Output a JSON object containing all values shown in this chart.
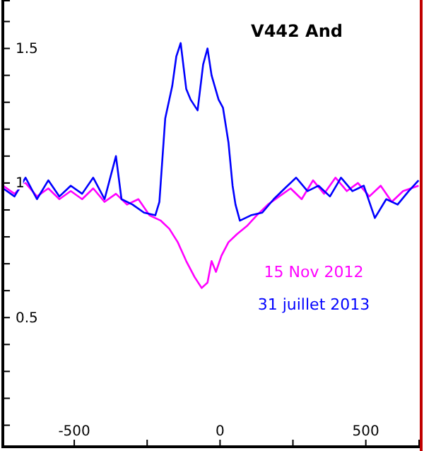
{
  "chart_data": {
    "type": "line",
    "title": "V442 And",
    "xlim": [
      -745,
      685
    ],
    "xticks": [
      -500,
      {
        "value": -250,
        "label": null
      },
      0,
      {
        "value": 250,
        "label": null
      },
      500
    ],
    "ylim": [
      0.02,
      1.68
    ],
    "yticks": [
      {
        "value": 0.1,
        "label": null
      },
      {
        "value": 0.2,
        "label": null
      },
      {
        "value": 0.3,
        "label": null
      },
      {
        "value": 0.4,
        "label": null
      },
      0.5,
      {
        "value": 0.6,
        "label": null
      },
      {
        "value": 0.7,
        "label": null
      },
      {
        "value": 0.8,
        "label": null
      },
      {
        "value": 0.9,
        "label": null
      },
      1,
      {
        "value": 1.1,
        "label": null
      },
      {
        "value": 1.2,
        "label": null
      },
      {
        "value": 1.3,
        "label": null
      },
      {
        "value": 1.4,
        "label": null
      },
      1.5,
      {
        "value": 1.6,
        "label": null
      }
    ],
    "grid": false,
    "legend": "right",
    "marker": "none",
    "line_style": "solid",
    "series": [
      {
        "name": "15 Nov 2012",
        "color": "#ff00ff",
        "x": [
          -744,
          -705,
          -667,
          -628,
          -589,
          -551,
          -512,
          -473,
          -435,
          -396,
          -357,
          -319,
          -280,
          -242,
          -203,
          -174,
          -145,
          -116,
          -87,
          -63,
          -43,
          -29,
          -14,
          5,
          29,
          58,
          92,
          126,
          164,
          203,
          242,
          280,
          319,
          357,
          396,
          435,
          473,
          512,
          551,
          589,
          628,
          681
        ],
        "values": [
          0.99,
          0.96,
          1.0,
          0.95,
          0.98,
          0.94,
          0.97,
          0.94,
          0.98,
          0.93,
          0.96,
          0.92,
          0.94,
          0.88,
          0.86,
          0.83,
          0.78,
          0.71,
          0.65,
          0.61,
          0.63,
          0.71,
          0.67,
          0.73,
          0.78,
          0.81,
          0.84,
          0.88,
          0.92,
          0.95,
          0.98,
          0.94,
          1.01,
          0.96,
          1.02,
          0.97,
          1.0,
          0.95,
          0.99,
          0.93,
          0.97,
          0.99
        ]
      },
      {
        "name": "31 juillet 2013",
        "color": "#0000ff",
        "x": [
          -744,
          -705,
          -667,
          -628,
          -589,
          -551,
          -512,
          -473,
          -435,
          -396,
          -357,
          -338,
          -300,
          -261,
          -222,
          -208,
          -188,
          -164,
          -150,
          -135,
          -116,
          -101,
          -77,
          -58,
          -43,
          -29,
          -5,
          10,
          29,
          43,
          53,
          68,
          106,
          145,
          184,
          222,
          261,
          300,
          338,
          377,
          415,
          454,
          493,
          531,
          570,
          609,
          647,
          681
        ],
        "values": [
          0.98,
          0.95,
          1.02,
          0.94,
          1.01,
          0.95,
          0.99,
          0.96,
          1.02,
          0.94,
          1.1,
          0.94,
          0.92,
          0.89,
          0.88,
          0.93,
          1.24,
          1.36,
          1.47,
          1.52,
          1.35,
          1.31,
          1.27,
          1.44,
          1.5,
          1.4,
          1.31,
          1.28,
          1.15,
          0.99,
          0.92,
          0.86,
          0.88,
          0.89,
          0.94,
          0.98,
          1.02,
          0.97,
          0.99,
          0.95,
          1.02,
          0.97,
          0.99,
          0.87,
          0.94,
          0.92,
          0.97,
          1.01
        ]
      }
    ]
  }
}
